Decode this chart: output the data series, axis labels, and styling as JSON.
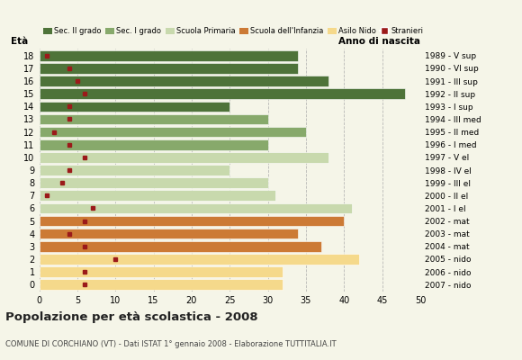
{
  "ages": [
    18,
    17,
    16,
    15,
    14,
    13,
    12,
    11,
    10,
    9,
    8,
    7,
    6,
    5,
    4,
    3,
    2,
    1,
    0
  ],
  "bar_values": [
    34,
    34,
    38,
    48,
    25,
    30,
    35,
    30,
    38,
    25,
    30,
    31,
    41,
    40,
    34,
    37,
    42,
    32,
    32
  ],
  "foreigners": [
    1,
    4,
    5,
    6,
    4,
    4,
    2,
    4,
    6,
    4,
    3,
    1,
    7,
    6,
    4,
    6,
    10,
    6,
    6
  ],
  "right_labels": [
    "1989 - V sup",
    "1990 - VI sup",
    "1991 - III sup",
    "1992 - II sup",
    "1993 - I sup",
    "1994 - III med",
    "1995 - II med",
    "1996 - I med",
    "1997 - V el",
    "1998 - IV el",
    "1999 - III el",
    "2000 - II el",
    "2001 - I el",
    "2002 - mat",
    "2003 - mat",
    "2004 - mat",
    "2005 - nido",
    "2006 - nido",
    "2007 - nido"
  ],
  "colors": {
    "Sec. II grado": "#4e7339",
    "Sec. I grado": "#87a96b",
    "Scuola Primaria": "#c8d9ad",
    "Scuola dell'Infanzia": "#cc7a35",
    "Asilo Nido": "#f5d98b",
    "Stranieri": "#9b1a1a"
  },
  "age_colors": {
    "18": "Sec. II grado",
    "17": "Sec. II grado",
    "16": "Sec. II grado",
    "15": "Sec. II grado",
    "14": "Sec. II grado",
    "13": "Sec. I grado",
    "12": "Sec. I grado",
    "11": "Sec. I grado",
    "10": "Scuola Primaria",
    "9": "Scuola Primaria",
    "8": "Scuola Primaria",
    "7": "Scuola Primaria",
    "6": "Scuola Primaria",
    "5": "Scuola dell'Infanzia",
    "4": "Scuola dell'Infanzia",
    "3": "Scuola dell'Infanzia",
    "2": "Asilo Nido",
    "1": "Asilo Nido",
    "0": "Asilo Nido"
  },
  "legend_order": [
    "Sec. II grado",
    "Sec. I grado",
    "Scuola Primaria",
    "Scuola dell'Infanzia",
    "Asilo Nido",
    "Stranieri"
  ],
  "title": "Popolazione per età scolastica - 2008",
  "subtitle": "COMUNE DI CORCHIANO (VT) - Dati ISTAT 1° gennaio 2008 - Elaborazione TUTTITALIA.IT",
  "label_eta": "Età",
  "label_anno": "Anno di nascita",
  "xlim": [
    0,
    50
  ],
  "xticks": [
    0,
    5,
    10,
    15,
    20,
    25,
    30,
    35,
    40,
    45,
    50
  ],
  "background_color": "#f5f5e8",
  "grid_color": "#aaaaaa",
  "bar_height": 0.82
}
